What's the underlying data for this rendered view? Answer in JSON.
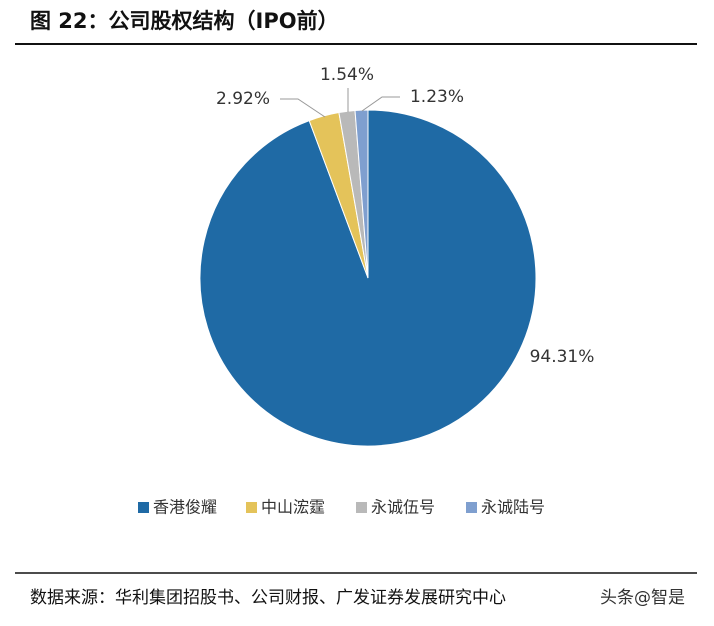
{
  "chart_data": {
    "type": "pie",
    "title": "图 22：公司股权结构（IPO前）",
    "categories": [
      "香港俊耀",
      "中山浤霆",
      "永诚伍号",
      "永诚陆号"
    ],
    "values": [
      94.31,
      2.92,
      1.54,
      1.23
    ],
    "value_labels": [
      "94.31%",
      "2.92%",
      "1.54%",
      "1.23%"
    ],
    "colors": [
      "#1f6aa5",
      "#e4c35a",
      "#b9b9b9",
      "#7f9fcf"
    ],
    "legend": "bottom",
    "source": "数据来源：华利集团招股书、公司财报、广发证券发展研究中心",
    "watermark": "头条@智是"
  }
}
